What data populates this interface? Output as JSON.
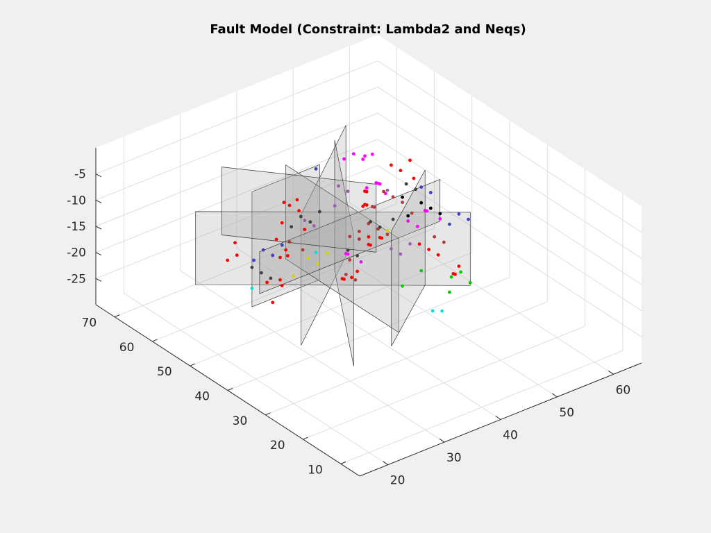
{
  "chart_data": {
    "type": "scatter",
    "title": "Fault Model (Constraint: Lambda2 and Neqs)",
    "xlabel": "",
    "ylabel": "",
    "zlabel": "",
    "grid": true,
    "x_ticks": [
      "20",
      "30",
      "40",
      "50",
      "60"
    ],
    "y_ticks": [
      "10",
      "20",
      "30",
      "40",
      "50",
      "60",
      "70"
    ],
    "z_ticks": [
      "-5",
      "-10",
      "-15",
      "-20",
      "-25"
    ],
    "xlim": [
      15,
      65
    ],
    "ylim": [
      5,
      75
    ],
    "zlim": [
      -30,
      0
    ],
    "fault_planes": [
      {
        "corners": [
          [
            30,
            56,
            -6
          ],
          [
            42,
            56,
            -6
          ],
          [
            42,
            56,
            -28
          ],
          [
            30,
            56,
            -28
          ]
        ]
      },
      {
        "corners": [
          [
            28,
            40,
            -2
          ],
          [
            48,
            58,
            -2
          ],
          [
            48,
            58,
            -27
          ],
          [
            28,
            40,
            -27
          ]
        ]
      },
      {
        "corners": [
          [
            24,
            62,
            -10
          ],
          [
            54,
            34,
            -10
          ],
          [
            54,
            34,
            -24
          ],
          [
            24,
            62,
            -24
          ]
        ]
      },
      {
        "corners": [
          [
            32,
            32,
            -4
          ],
          [
            46,
            58,
            -4
          ],
          [
            46,
            58,
            -29
          ],
          [
            32,
            32,
            -29
          ]
        ]
      },
      {
        "corners": [
          [
            40,
            32,
            -8
          ],
          [
            40,
            62,
            -8
          ],
          [
            40,
            62,
            -26
          ],
          [
            40,
            32,
            -26
          ]
        ]
      },
      {
        "corners": [
          [
            26,
            48,
            -12
          ],
          [
            58,
            48,
            -12
          ],
          [
            58,
            48,
            -20
          ],
          [
            26,
            48,
            -20
          ]
        ]
      },
      {
        "corners": [
          [
            36,
            28,
            -3
          ],
          [
            50,
            40,
            -3
          ],
          [
            50,
            40,
            -25
          ],
          [
            36,
            28,
            -25
          ]
        ]
      },
      {
        "corners": [
          [
            30,
            64,
            -5
          ],
          [
            44,
            44,
            -5
          ],
          [
            44,
            44,
            -18
          ],
          [
            30,
            64,
            -18
          ]
        ]
      }
    ],
    "clusters": [
      {
        "color": "#ff0000",
        "points": [
          [
            38,
            58,
            -13
          ],
          [
            39,
            57,
            -14
          ],
          [
            37,
            58,
            -12
          ],
          [
            38,
            56,
            -11
          ],
          [
            36,
            57,
            -15
          ],
          [
            37,
            60,
            -20
          ],
          [
            38,
            59,
            -22
          ],
          [
            39,
            60,
            -24
          ],
          [
            37,
            59,
            -23
          ],
          [
            40,
            57,
            -18
          ],
          [
            46,
            50,
            -10
          ],
          [
            47,
            51,
            -11
          ],
          [
            45,
            49,
            -12
          ],
          [
            48,
            46,
            -4
          ],
          [
            49,
            45,
            -5
          ],
          [
            50,
            44,
            -3
          ],
          [
            50,
            43,
            -6
          ],
          [
            34,
            58,
            -26
          ],
          [
            35,
            56,
            -25
          ],
          [
            36,
            57,
            -27
          ],
          [
            33,
            55,
            -28
          ],
          [
            42,
            50,
            -25
          ],
          [
            43,
            51,
            -26
          ],
          [
            44,
            49,
            -24
          ],
          [
            45,
            52,
            -27
          ],
          [
            52,
            42,
            -20
          ],
          [
            53,
            41,
            -21
          ],
          [
            51,
            43,
            -19
          ],
          [
            55,
            40,
            -25
          ],
          [
            56,
            41,
            -26
          ],
          [
            56,
            40,
            -24
          ],
          [
            46,
            46,
            -17
          ],
          [
            47,
            47,
            -18
          ],
          [
            44,
            46,
            -16
          ],
          [
            30,
            60,
            -20
          ],
          [
            31,
            62,
            -19
          ],
          [
            29,
            61,
            -21
          ],
          [
            42,
            44,
            -8
          ],
          [
            43,
            45,
            -9
          ],
          [
            48,
            52,
            -22
          ],
          [
            49,
            53,
            -23
          ],
          [
            47,
            53,
            -21
          ]
        ]
      },
      {
        "color": "#ff00ff",
        "points": [
          [
            44,
            50,
            -2
          ],
          [
            45,
            49,
            -3
          ],
          [
            46,
            48,
            -2
          ],
          [
            43,
            51,
            -3
          ],
          [
            44,
            47,
            -1
          ],
          [
            46,
            47,
            -7
          ],
          [
            47,
            48,
            -8
          ],
          [
            48,
            49,
            -9
          ],
          [
            45,
            48,
            -8
          ],
          [
            47,
            46,
            -9
          ],
          [
            52,
            43,
            -13
          ],
          [
            53,
            44,
            -14
          ],
          [
            54,
            42,
            -15
          ],
          [
            51,
            46,
            -16
          ],
          [
            52,
            45,
            -17
          ],
          [
            44,
            52,
            -22
          ],
          [
            45,
            53,
            -23
          ],
          [
            46,
            51,
            -24
          ]
        ]
      },
      {
        "color": "#b03a3a",
        "points": [
          [
            48,
            48,
            -10
          ],
          [
            49,
            47,
            -11
          ],
          [
            50,
            46,
            -12
          ],
          [
            47,
            49,
            -13
          ],
          [
            46,
            48,
            -12
          ],
          [
            51,
            45,
            -14
          ],
          [
            48,
            52,
            -18
          ],
          [
            49,
            51,
            -19
          ],
          [
            50,
            50,
            -20
          ],
          [
            47,
            53,
            -21
          ],
          [
            44,
            52,
            -26
          ],
          [
            45,
            51,
            -27
          ],
          [
            46,
            54,
            -25
          ],
          [
            53,
            42,
            -18
          ],
          [
            54,
            41,
            -19
          ],
          [
            38,
            58,
            -20
          ],
          [
            39,
            56,
            -21
          ],
          [
            42,
            48,
            -16
          ],
          [
            43,
            47,
            -15
          ]
        ]
      },
      {
        "color": "#404040",
        "points": [
          [
            40,
            58,
            -16
          ],
          [
            41,
            57,
            -17
          ],
          [
            39,
            59,
            -18
          ],
          [
            42,
            56,
            -15
          ],
          [
            34,
            62,
            -25
          ],
          [
            35,
            61,
            -26
          ],
          [
            36,
            60,
            -27
          ],
          [
            45,
            47,
            -14
          ],
          [
            46,
            46,
            -15
          ],
          [
            47,
            44,
            -13
          ],
          [
            50,
            45,
            -8
          ],
          [
            51,
            44,
            -9
          ],
          [
            43,
            50,
            -20
          ],
          [
            44,
            49,
            -21
          ]
        ]
      },
      {
        "color": "#4040c0",
        "points": [
          [
            32,
            56,
            -18
          ],
          [
            33,
            55,
            -19
          ],
          [
            31,
            57,
            -20
          ],
          [
            34,
            54,
            -17
          ],
          [
            56,
            40,
            -14
          ],
          [
            57,
            39,
            -15
          ],
          [
            55,
            41,
            -16
          ],
          [
            52,
            44,
            -9
          ],
          [
            53,
            43,
            -10
          ],
          [
            40,
            54,
            -5
          ]
        ]
      },
      {
        "color": "#000000",
        "points": [
          [
            52,
            44,
            -12
          ],
          [
            53,
            43,
            -13
          ],
          [
            54,
            42,
            -14
          ],
          [
            51,
            46,
            -15
          ],
          [
            50,
            46,
            -11
          ]
        ]
      },
      {
        "color": "#9e5db0",
        "points": [
          [
            44,
            54,
            -10
          ],
          [
            45,
            53,
            -11
          ],
          [
            42,
            52,
            -12
          ],
          [
            48,
            46,
            -20
          ],
          [
            49,
            45,
            -21
          ],
          [
            50,
            44,
            -19
          ],
          [
            46,
            44,
            -7
          ],
          [
            38,
            54,
            -14
          ],
          [
            39,
            53,
            -15
          ]
        ]
      },
      {
        "color": "#00cc00",
        "points": [
          [
            56,
            42,
            -27
          ],
          [
            57,
            41,
            -26
          ],
          [
            58,
            40,
            -28
          ],
          [
            55,
            41,
            -29
          ],
          [
            50,
            46,
            -28
          ],
          [
            52,
            44,
            -25
          ]
        ]
      },
      {
        "color": "#00e0e0",
        "points": [
          [
            34,
            62,
            -29
          ],
          [
            50,
            38,
            -29
          ],
          [
            51,
            37,
            -29
          ],
          [
            40,
            54,
            -21
          ]
        ]
      },
      {
        "color": "#d8d000",
        "points": [
          [
            40,
            56,
            -23
          ],
          [
            41,
            55,
            -24
          ],
          [
            42,
            54,
            -22
          ],
          [
            48,
            47,
            -17
          ],
          [
            38,
            57,
            -26
          ]
        ]
      }
    ]
  }
}
